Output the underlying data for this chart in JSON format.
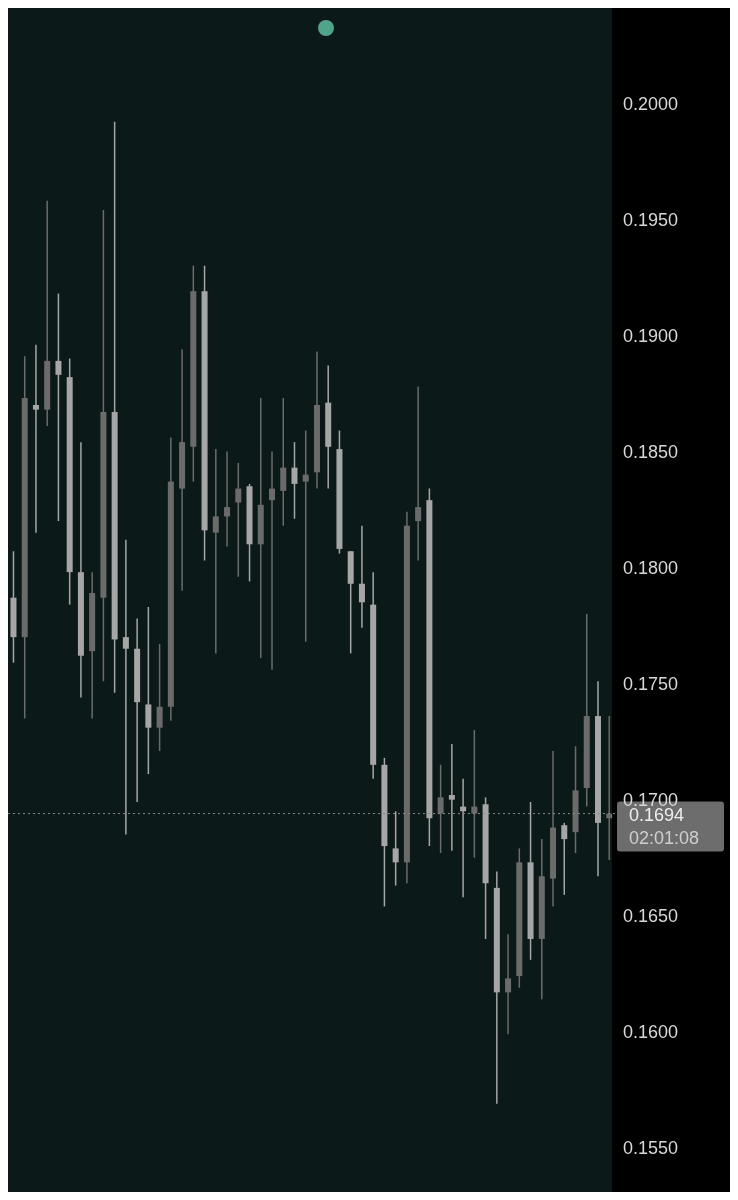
{
  "chart_data": {
    "type": "candlestick",
    "categories": [
      null,
      null,
      null,
      null,
      null,
      null,
      null,
      null,
      null,
      null,
      null,
      null,
      null,
      null,
      null,
      null,
      null,
      null,
      null,
      null,
      null,
      null,
      null,
      null,
      null,
      null,
      null,
      null,
      null,
      null,
      null,
      null,
      null,
      null,
      null,
      null,
      null,
      null,
      null,
      null,
      null,
      null,
      null,
      null,
      null,
      null,
      null,
      null,
      null,
      null,
      null,
      null,
      null,
      null
    ],
    "ohlc": [
      [
        0.1787,
        0.1807,
        0.1759,
        0.177
      ],
      [
        0.177,
        0.1891,
        0.1735,
        0.1873
      ],
      [
        0.187,
        0.1896,
        0.1815,
        0.1868
      ],
      [
        0.1868,
        0.1958,
        0.1861,
        0.1889
      ],
      [
        0.1889,
        0.1918,
        0.182,
        0.1883
      ],
      [
        0.1882,
        0.189,
        0.1784,
        0.1798
      ],
      [
        0.1798,
        0.1854,
        0.1744,
        0.1762
      ],
      [
        0.1764,
        0.1798,
        0.1735,
        0.1789
      ],
      [
        0.1787,
        0.1954,
        0.1751,
        0.1867
      ],
      [
        0.1867,
        0.1992,
        0.1746,
        0.1769
      ],
      [
        0.177,
        0.1812,
        0.1685,
        0.1765
      ],
      [
        0.1765,
        0.1778,
        0.1699,
        0.1742
      ],
      [
        0.1741,
        0.1783,
        0.1711,
        0.1731
      ],
      [
        0.1731,
        0.1767,
        0.1721,
        0.174
      ],
      [
        0.174,
        0.1856,
        0.1734,
        0.1837
      ],
      [
        0.1834,
        0.1894,
        0.179,
        0.1854
      ],
      [
        0.1852,
        0.193,
        0.1837,
        0.1919
      ],
      [
        0.1919,
        0.193,
        0.1803,
        0.1816
      ],
      [
        0.1815,
        0.1851,
        0.1763,
        0.1822
      ],
      [
        0.1822,
        0.185,
        0.1809,
        0.1826
      ],
      [
        0.1828,
        0.1845,
        0.1796,
        0.1834
      ],
      [
        0.1835,
        0.1836,
        0.1794,
        0.181
      ],
      [
        0.181,
        0.1873,
        0.1761,
        0.1827
      ],
      [
        0.1829,
        0.185,
        0.1756,
        0.1834
      ],
      [
        0.1833,
        0.1873,
        0.1818,
        0.1843
      ],
      [
        0.1843,
        0.1854,
        0.1821,
        0.1836
      ],
      [
        0.1837,
        0.1859,
        0.1768,
        0.184
      ],
      [
        0.1841,
        0.1893,
        0.1834,
        0.187
      ],
      [
        0.1871,
        0.1887,
        0.1834,
        0.1852
      ],
      [
        0.1851,
        0.1859,
        0.1806,
        0.1808
      ],
      [
        0.1807,
        0.1807,
        0.1763,
        0.1793
      ],
      [
        0.1793,
        0.1818,
        0.1774,
        0.1785
      ],
      [
        0.1784,
        0.1798,
        0.1709,
        0.1715
      ],
      [
        0.1715,
        0.1718,
        0.1654,
        0.168
      ],
      [
        0.1679,
        0.1695,
        0.1663,
        0.1673
      ],
      [
        0.1673,
        0.1824,
        0.1664,
        0.1818
      ],
      [
        0.182,
        0.1878,
        0.1803,
        0.1826
      ],
      [
        0.1829,
        0.1834,
        0.168,
        0.1692
      ],
      [
        0.1694,
        0.1715,
        0.1677,
        0.1701
      ],
      [
        0.1702,
        0.1724,
        0.1678,
        0.17
      ],
      [
        0.1697,
        0.1709,
        0.1658,
        0.1695
      ],
      [
        0.1694,
        0.173,
        0.1675,
        0.1697
      ],
      [
        0.1698,
        0.1701,
        0.164,
        0.1664
      ],
      [
        0.1662,
        0.1669,
        0.1569,
        0.1617
      ],
      [
        0.1617,
        0.1642,
        0.1599,
        0.1623
      ],
      [
        0.1624,
        0.1679,
        0.1619,
        0.1673
      ],
      [
        0.1673,
        0.1699,
        0.1631,
        0.164
      ],
      [
        0.164,
        0.1683,
        0.1614,
        0.1667
      ],
      [
        0.1666,
        0.1721,
        0.1654,
        0.1688
      ],
      [
        0.1689,
        0.169,
        0.1659,
        0.1683
      ],
      [
        0.1686,
        0.1723,
        0.1677,
        0.1704
      ],
      [
        0.1705,
        0.178,
        0.1697,
        0.1736
      ],
      [
        0.1736,
        0.1751,
        0.1667,
        0.169
      ],
      [
        0.1692,
        0.1736,
        0.1674,
        0.1694
      ]
    ],
    "colors": [
      "#a6a6a6",
      "#6b6b6b",
      "#a6a6a6",
      "#6b6b6b",
      "#a6a6a6",
      "#a6a6a6",
      "#a6a6a6",
      "#6b6b6b",
      "#6b6b6b",
      "#a6a6a6",
      "#a6a6a6",
      "#a6a6a6",
      "#a6a6a6",
      "#6b6b6b",
      "#6b6b6b",
      "#6b6b6b",
      "#6b6b6b",
      "#a6a6a6",
      "#6b6b6b",
      "#6b6b6b",
      "#6b6b6b",
      "#a6a6a6",
      "#6b6b6b",
      "#6b6b6b",
      "#6b6b6b",
      "#a6a6a6",
      "#6b6b6b",
      "#6b6b6b",
      "#a6a6a6",
      "#a6a6a6",
      "#a6a6a6",
      "#a6a6a6",
      "#a6a6a6",
      "#a6a6a6",
      "#a6a6a6",
      "#6b6b6b",
      "#6b6b6b",
      "#a6a6a6",
      "#6b6b6b",
      "#a6a6a6",
      "#a6a6a6",
      "#6b6b6b",
      "#a6a6a6",
      "#a6a6a6",
      "#6b6b6b",
      "#6b6b6b",
      "#a6a6a6",
      "#6b6b6b",
      "#6b6b6b",
      "#a6a6a6",
      "#6b6b6b",
      "#6b6b6b",
      "#a6a6a6",
      "#6b6b6b"
    ],
    "ylim": [
      0.1531,
      0.2041
    ],
    "yticks": [
      {
        "value": 0.155,
        "label": "0.1550"
      },
      {
        "value": 0.16,
        "label": "0.1600"
      },
      {
        "value": 0.165,
        "label": "0.1650"
      },
      {
        "value": 0.17,
        "label": "0.1700"
      },
      {
        "value": 0.175,
        "label": "0.1750"
      },
      {
        "value": 0.18,
        "label": "0.1800"
      },
      {
        "value": 0.185,
        "label": "0.1850"
      },
      {
        "value": 0.19,
        "label": "0.1900"
      },
      {
        "value": 0.195,
        "label": "0.1950"
      },
      {
        "value": 0.2,
        "label": "0.2000"
      }
    ],
    "ref_lines": [
      {
        "axis": "y",
        "value": 0.1694,
        "label": "0.1694",
        "color": "#8a8a8a",
        "line_style": "dotted"
      }
    ],
    "annotations": [
      "02:01:08"
    ],
    "grid": false
  }
}
